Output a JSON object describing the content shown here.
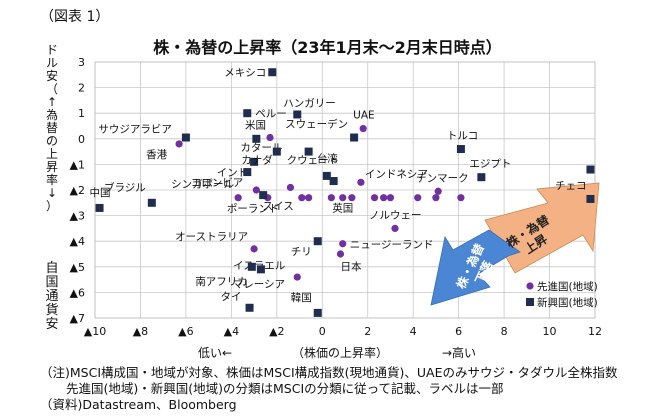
{
  "figure_label": "（図表 1）",
  "y_axis_label_top": "ドル安（↑為替の上昇率↓）",
  "y_axis_label_bottom": "自国通貨安",
  "x_axis": {
    "low": "低い←",
    "mid": "（株価の上昇率）",
    "high": "→高い"
  },
  "notes": [
    "（注)MSCI構成国・地域が対象、株価はMSCI構成指数(現地通貨)、UAEのみサウジ・タダウル全株指数",
    "先進国(地域)・新興国(地域)の分類はMSCIの分類に従って記載、ラベルは一部",
    "（資料)Datastream、Bloomberg"
  ],
  "colors": {
    "developed": "#7030a0",
    "emerging": "#1f2d4e",
    "arrow_down": "#4a86d4",
    "arrow_up": "#f4b183"
  },
  "chart_data": {
    "type": "scatter",
    "title": "株・為替の上昇率（23年1月末～2月末日時点）",
    "xlabel": "（株価の上昇率）",
    "ylabel": "ドル安（↑為替の上昇率↓）",
    "xlim": [
      -10,
      12
    ],
    "ylim": [
      -7,
      3
    ],
    "x_ticks": [
      {
        "value": -10,
        "label": "▲10"
      },
      {
        "value": -8,
        "label": "▲8"
      },
      {
        "value": -6,
        "label": "▲6"
      },
      {
        "value": -4,
        "label": "▲4"
      },
      {
        "value": -2,
        "label": "▲2"
      },
      {
        "value": 0,
        "label": "0"
      },
      {
        "value": 2,
        "label": "2"
      },
      {
        "value": 4,
        "label": "4"
      },
      {
        "value": 6,
        "label": "6"
      },
      {
        "value": 8,
        "label": "8"
      },
      {
        "value": 10,
        "label": "10"
      },
      {
        "value": 12,
        "label": "12"
      }
    ],
    "y_ticks": [
      {
        "value": 3,
        "label": "3"
      },
      {
        "value": 2,
        "label": "2"
      },
      {
        "value": 1,
        "label": "1"
      },
      {
        "value": 0,
        "label": "0"
      },
      {
        "value": -1,
        "label": "▲1"
      },
      {
        "value": -2,
        "label": "▲2"
      },
      {
        "value": -3,
        "label": "▲3"
      },
      {
        "value": -4,
        "label": "▲4"
      },
      {
        "value": -5,
        "label": "▲5"
      },
      {
        "value": -6,
        "label": "▲6"
      },
      {
        "value": -7,
        "label": "▲7"
      }
    ],
    "grid": true,
    "legend": {
      "position": "bottom-right",
      "entries": [
        "先進国(地域)",
        "新興国(地域)"
      ]
    },
    "arrows": {
      "up_right": "株・為替上昇",
      "down_left": "株・為替下落"
    },
    "series": [
      {
        "name": "先進国(地域)",
        "marker": "circle",
        "points": [
          {
            "x": -6.3,
            "y": -0.2,
            "label": "香港"
          },
          {
            "x": -2.3,
            "y": 0.05,
            "label": "米国"
          },
          {
            "x": -3.7,
            "y": -2.3,
            "label": "シンガポール"
          },
          {
            "x": -3.0,
            "y": -4.3,
            "label": "オーストラリア"
          },
          {
            "x": -2.9,
            "y": -2.0,
            "label": ""
          },
          {
            "x": -2.4,
            "y": -2.3,
            "label": ""
          },
          {
            "x": -1.4,
            "y": -1.9,
            "label": ""
          },
          {
            "x": -0.9,
            "y": -2.3,
            "label": "スイス"
          },
          {
            "x": -0.6,
            "y": -2.3,
            "label": ""
          },
          {
            "x": 0.4,
            "y": -2.3,
            "label": ""
          },
          {
            "x": 0.9,
            "y": -2.3,
            "label": "英国"
          },
          {
            "x": 1.3,
            "y": -2.3,
            "label": ""
          },
          {
            "x": 1.7,
            "y": -1.7,
            "label": "インドネシア"
          },
          {
            "x": 1.8,
            "y": 0.4,
            "label": "UAE"
          },
          {
            "x": 2.3,
            "y": -2.3,
            "label": ""
          },
          {
            "x": 2.7,
            "y": -2.3,
            "label": ""
          },
          {
            "x": 3.0,
            "y": -2.3,
            "label": ""
          },
          {
            "x": 3.2,
            "y": -3.5,
            "label": "ノルウェー"
          },
          {
            "x": 4.2,
            "y": -2.3,
            "label": ""
          },
          {
            "x": 5.0,
            "y": -2.3,
            "label": ""
          },
          {
            "x": 5.1,
            "y": -2.05,
            "label": "デンマーク"
          },
          {
            "x": 6.1,
            "y": -2.3,
            "label": ""
          },
          {
            "x": -1.1,
            "y": -5.4,
            "label": "イスラエル"
          },
          {
            "x": 0.9,
            "y": -4.1,
            "label": "ニュージーランド"
          },
          {
            "x": 0.8,
            "y": -4.5,
            "label": "日本"
          }
        ]
      },
      {
        "name": "新興国(地域)",
        "marker": "square",
        "points": [
          {
            "x": -9.8,
            "y": -2.7,
            "label": "中国"
          },
          {
            "x": -6.0,
            "y": 0.05,
            "label": "サウジアラビア"
          },
          {
            "x": -7.5,
            "y": -2.5,
            "label": "ブラジル"
          },
          {
            "x": -3.3,
            "y": 1.0,
            "label": "ペルー"
          },
          {
            "x": -2.9,
            "y": 0.0,
            "label": "カタール"
          },
          {
            "x": -3.0,
            "y": -0.9,
            "label": "インド"
          },
          {
            "x": -2.6,
            "y": -2.2,
            "label": "ポーランド"
          },
          {
            "x": -2.0,
            "y": -0.5,
            "label": "カナダ"
          },
          {
            "x": -3.3,
            "y": -1.3,
            "label": "コロンビア"
          },
          {
            "x": -2.2,
            "y": 2.6,
            "label": "メキシコ"
          },
          {
            "x": -1.1,
            "y": 0.95,
            "label": "ハンガリー"
          },
          {
            "x": -0.6,
            "y": -0.5,
            "label": "クウェート"
          },
          {
            "x": 1.4,
            "y": 0.05,
            "label": "スウェーデン"
          },
          {
            "x": 0.2,
            "y": -1.45,
            "label": "台湾"
          },
          {
            "x": 0.5,
            "y": -1.65,
            "label": ""
          },
          {
            "x": 6.1,
            "y": -0.4,
            "label": "トルコ"
          },
          {
            "x": 7.0,
            "y": -1.5,
            "label": "エジプト"
          },
          {
            "x": 11.8,
            "y": -1.2,
            "label": ""
          },
          {
            "x": 11.8,
            "y": -2.35,
            "label": "チェコ"
          },
          {
            "x": -0.2,
            "y": -4.0,
            "label": "チリ"
          },
          {
            "x": -2.7,
            "y": -5.1,
            "label": "マレーシア"
          },
          {
            "x": -3.1,
            "y": -5.0,
            "label": "南アフリカ"
          },
          {
            "x": -3.2,
            "y": -6.6,
            "label": "タイ"
          },
          {
            "x": -0.2,
            "y": -6.8,
            "label": "韓国"
          }
        ]
      }
    ]
  }
}
